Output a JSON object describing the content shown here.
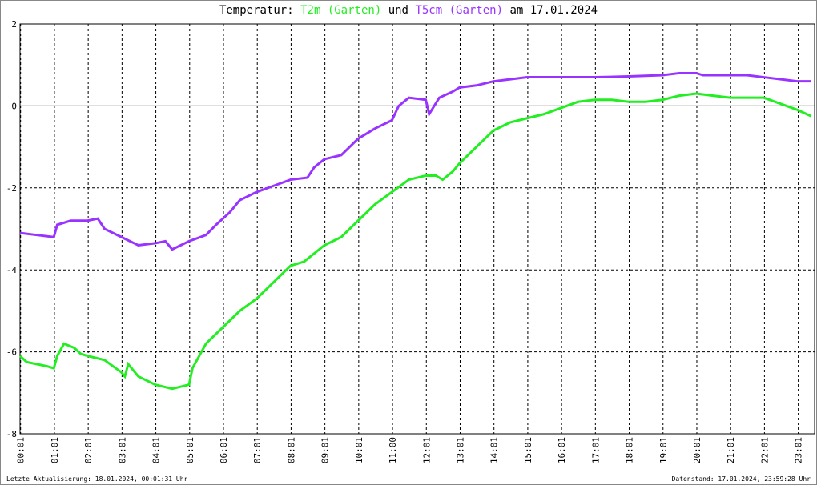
{
  "chart_data": {
    "type": "line",
    "title": [
      "Temperatur:",
      "und",
      "am 17.01.2024"
    ],
    "footer_left": "Letzte Aktualisierung: 18.01.2024, 00:01:31 Uhr",
    "footer_right": "Datenstand: 17.01.2024, 23:59:28 Uhr",
    "xlim": [
      0,
      23.5
    ],
    "ylim": [
      -8,
      2
    ],
    "yticks": [
      -8,
      -6,
      -4,
      -2,
      0,
      2
    ],
    "grid": true,
    "xticks": [
      {
        "value": 0.017,
        "label": "00:01"
      },
      {
        "value": 1.017,
        "label": "01:01"
      },
      {
        "value": 2.017,
        "label": "02:01"
      },
      {
        "value": 3.017,
        "label": "03:01"
      },
      {
        "value": 4.017,
        "label": "04:01"
      },
      {
        "value": 5.017,
        "label": "05:01"
      },
      {
        "value": 6.017,
        "label": "06:01"
      },
      {
        "value": 7.017,
        "label": "07:01"
      },
      {
        "value": 8.017,
        "label": "08:01"
      },
      {
        "value": 9.017,
        "label": "09:01"
      },
      {
        "value": 10.017,
        "label": "10:01"
      },
      {
        "value": 11.017,
        "label": "11:00"
      },
      {
        "value": 12.017,
        "label": "12:01"
      },
      {
        "value": 13.017,
        "label": "13:01"
      },
      {
        "value": 14.017,
        "label": "14:01"
      },
      {
        "value": 15.017,
        "label": "15:01"
      },
      {
        "value": 16.017,
        "label": "16:01"
      },
      {
        "value": 17.017,
        "label": "17:01"
      },
      {
        "value": 18.017,
        "label": "18:01"
      },
      {
        "value": 19.017,
        "label": "19:01"
      },
      {
        "value": 20.017,
        "label": "20:01"
      },
      {
        "value": 21.017,
        "label": "21:01"
      },
      {
        "value": 22.017,
        "label": "22:01"
      },
      {
        "value": 23.017,
        "label": "23:01"
      }
    ],
    "series": [
      {
        "name": "T2m (Garten)",
        "color": "#22ee22",
        "x": [
          0,
          0.2,
          0.8,
          1.0,
          1.1,
          1.3,
          1.6,
          1.8,
          2.0,
          2.5,
          3.0,
          3.1,
          3.2,
          3.5,
          4.0,
          4.5,
          5.0,
          5.1,
          5.5,
          6.0,
          6.5,
          7.0,
          7.5,
          8.0,
          8.4,
          9.0,
          9.5,
          10.0,
          10.5,
          11.0,
          11.5,
          12.0,
          12.3,
          12.5,
          12.8,
          13.0,
          13.5,
          14.0,
          14.5,
          15.0,
          15.5,
          16.0,
          16.5,
          17.0,
          17.5,
          18.0,
          18.5,
          19.0,
          19.5,
          20.0,
          20.5,
          21.0,
          22.0,
          22.5,
          23.0,
          23.4
        ],
        "values": [
          -6.1,
          -6.25,
          -6.35,
          -6.4,
          -6.1,
          -5.8,
          -5.9,
          -6.05,
          -6.1,
          -6.2,
          -6.5,
          -6.6,
          -6.3,
          -6.6,
          -6.8,
          -6.9,
          -6.8,
          -6.4,
          -5.8,
          -5.4,
          -5.0,
          -4.7,
          -4.3,
          -3.9,
          -3.8,
          -3.4,
          -3.2,
          -2.8,
          -2.4,
          -2.1,
          -1.8,
          -1.7,
          -1.7,
          -1.8,
          -1.6,
          -1.4,
          -1.0,
          -0.6,
          -0.4,
          -0.3,
          -0.2,
          -0.05,
          0.1,
          0.15,
          0.15,
          0.1,
          0.1,
          0.15,
          0.25,
          0.3,
          0.25,
          0.2,
          0.2,
          0.05,
          -0.1,
          -0.25
        ]
      },
      {
        "name": "T5cm (Garten)",
        "color": "#9933ff",
        "x": [
          0,
          0.5,
          1.0,
          1.1,
          1.5,
          2.0,
          2.3,
          2.5,
          3.0,
          3.5,
          4.0,
          4.3,
          4.5,
          5.0,
          5.5,
          5.8,
          6.2,
          6.5,
          7.0,
          7.5,
          8.0,
          8.5,
          8.7,
          9.0,
          9.5,
          10.0,
          10.5,
          11.0,
          11.2,
          11.5,
          12.0,
          12.1,
          12.4,
          12.8,
          13.0,
          13.5,
          14.0,
          14.5,
          15.0,
          16.0,
          17.0,
          18.0,
          19.0,
          19.5,
          20.0,
          20.2,
          21.0,
          21.5,
          22.0,
          22.5,
          23.0,
          23.4
        ],
        "values": [
          -3.1,
          -3.15,
          -3.2,
          -2.9,
          -2.8,
          -2.8,
          -2.75,
          -3.0,
          -3.2,
          -3.4,
          -3.35,
          -3.3,
          -3.5,
          -3.3,
          -3.15,
          -2.9,
          -2.6,
          -2.3,
          -2.1,
          -1.95,
          -1.8,
          -1.75,
          -1.5,
          -1.3,
          -1.2,
          -0.8,
          -0.55,
          -0.35,
          0.0,
          0.2,
          0.15,
          -0.2,
          0.2,
          0.35,
          0.45,
          0.5,
          0.6,
          0.65,
          0.7,
          0.7,
          0.7,
          0.72,
          0.75,
          0.8,
          0.8,
          0.75,
          0.75,
          0.75,
          0.7,
          0.65,
          0.6,
          0.6
        ]
      }
    ]
  }
}
